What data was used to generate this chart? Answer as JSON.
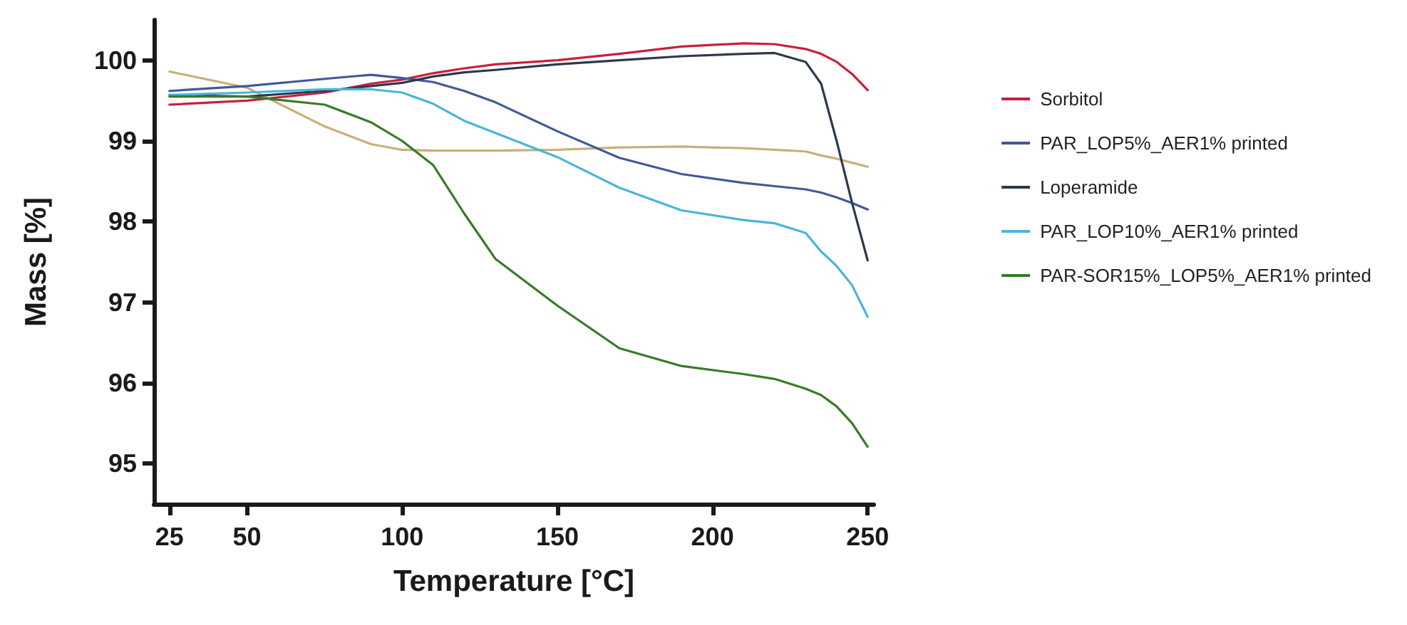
{
  "chart_data": {
    "type": "line",
    "xlabel": "Temperature [°C]",
    "ylabel": "Mass [%]",
    "xlim": [
      20,
      252
    ],
    "xticks": [
      25,
      50,
      100,
      150,
      200,
      250
    ],
    "ylim": [
      94.5,
      100.5
    ],
    "yticks": [
      95,
      96,
      97,
      98,
      99,
      100
    ],
    "grid": false,
    "legend": "right",
    "marker": "none",
    "line_style": "solid",
    "x": [
      25,
      50,
      75,
      90,
      100,
      110,
      120,
      130,
      150,
      170,
      190,
      210,
      220,
      230,
      235,
      240,
      245,
      250
    ],
    "series": [
      {
        "name": "Sorbitol",
        "color": "#c8203c",
        "values": [
          99.45,
          99.5,
          99.6,
          99.71,
          99.76,
          99.84,
          99.9,
          99.95,
          100.0,
          100.08,
          100.17,
          100.21,
          100.2,
          100.14,
          100.08,
          99.98,
          99.83,
          99.63
        ]
      },
      {
        "color": "#c8b07a",
        "values": [
          99.86,
          99.66,
          99.18,
          98.96,
          98.89,
          98.88,
          98.88,
          98.88,
          98.89,
          98.92,
          98.93,
          98.91,
          98.89,
          98.87,
          98.82,
          98.78,
          98.73,
          98.68
        ]
      },
      {
        "name": "PAR_LOP5%_AER1% printed",
        "color": "#3f5a9a",
        "values": [
          99.62,
          99.68,
          99.77,
          99.82,
          99.78,
          99.73,
          99.62,
          99.48,
          99.12,
          98.79,
          98.59,
          98.48,
          98.44,
          98.4,
          98.36,
          98.3,
          98.23,
          98.15
        ]
      },
      {
        "name": "Loperamide",
        "color": "#2c3a4a",
        "values": [
          99.57,
          99.55,
          99.62,
          99.68,
          99.72,
          99.8,
          99.85,
          99.88,
          99.95,
          100.0,
          100.05,
          100.08,
          100.09,
          99.98,
          99.71,
          99.0,
          98.23,
          97.52
        ]
      },
      {
        "name": "PAR_LOP10%_AER1% printed",
        "color": "#4ab4dc",
        "values": [
          99.57,
          99.6,
          99.64,
          99.64,
          99.6,
          99.46,
          99.25,
          99.1,
          98.8,
          98.42,
          98.14,
          98.02,
          97.98,
          97.86,
          97.63,
          97.45,
          97.21,
          96.82
        ]
      },
      {
        "name": "PAR-SOR15%_LOP5%_AER1% printed",
        "color": "#3a7a28",
        "values": [
          99.55,
          99.55,
          99.45,
          99.23,
          99.0,
          98.7,
          98.1,
          97.54,
          96.96,
          96.43,
          96.21,
          96.11,
          96.05,
          95.93,
          95.85,
          95.71,
          95.5,
          95.21
        ]
      }
    ]
  }
}
